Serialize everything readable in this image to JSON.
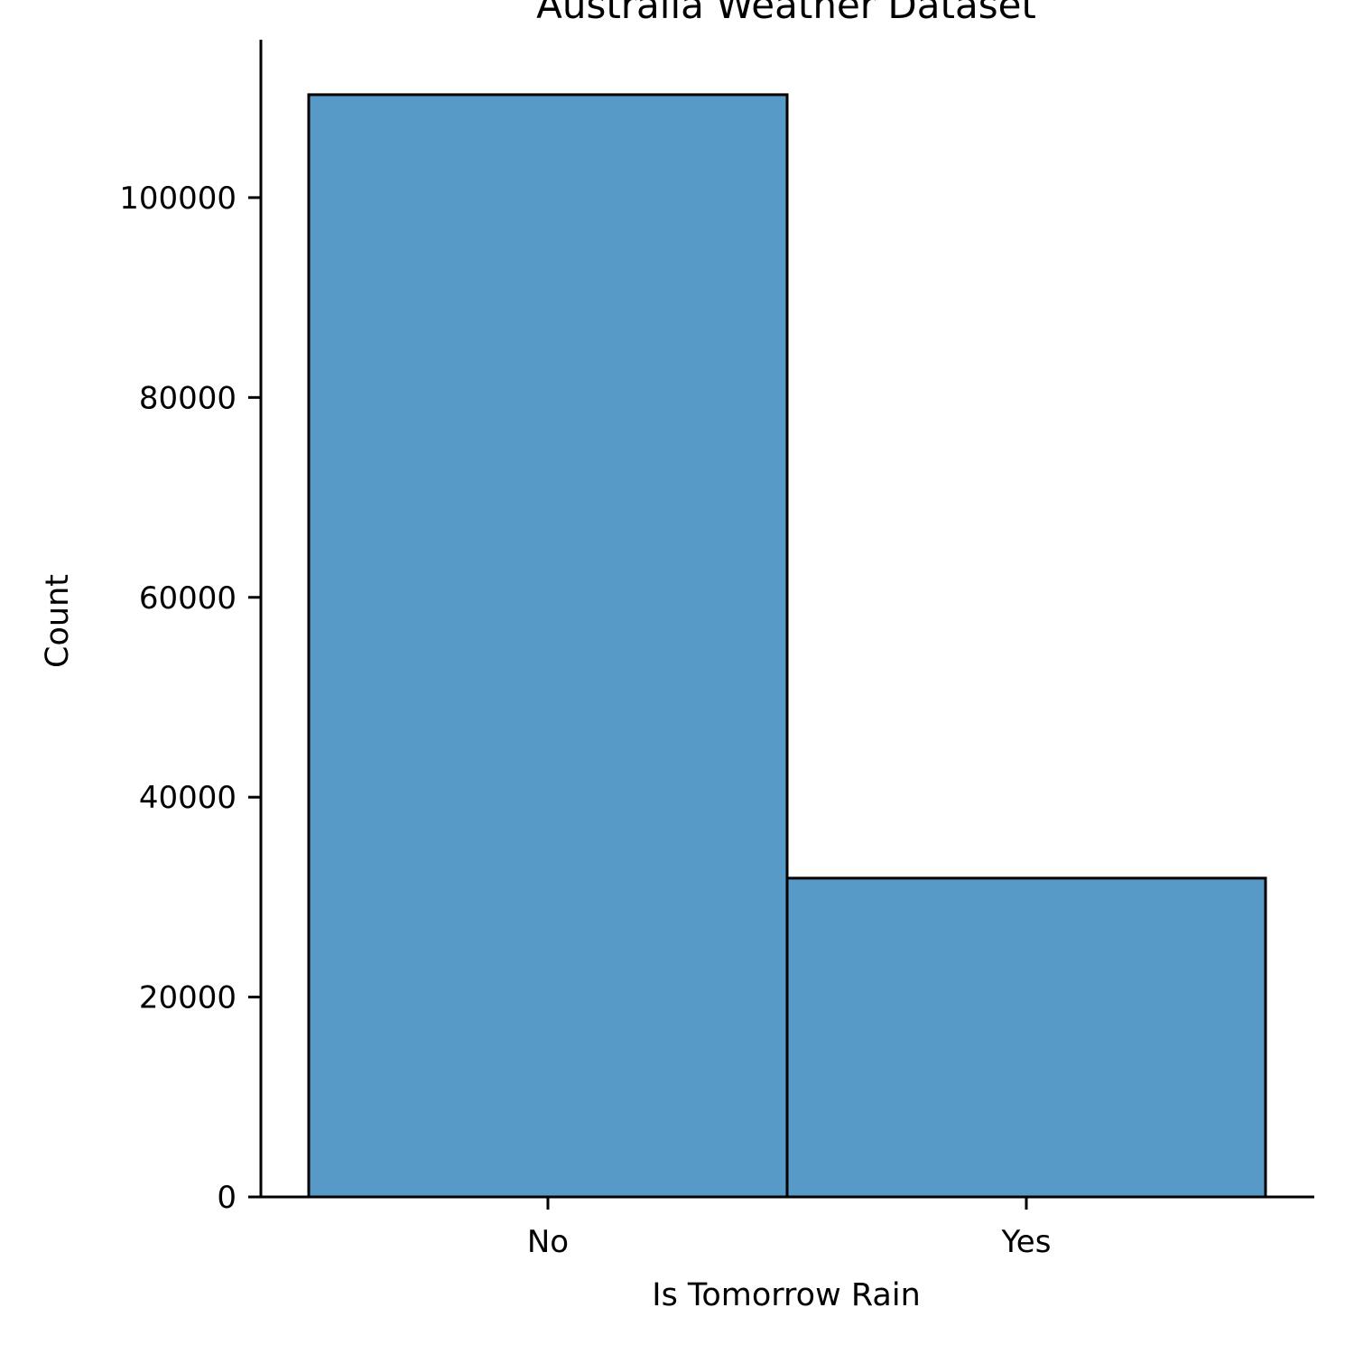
{
  "colors": {
    "bar_fill": "#5799c7",
    "bar_edge": "#000000",
    "axis": "#000000",
    "background": "#ffffff"
  },
  "chart_data": {
    "type": "bar",
    "title": "Australia Weather Dataset",
    "xlabel": "Is Tomorrow Rain",
    "ylabel": "Count",
    "categories": [
      "No",
      "Yes"
    ],
    "values": [
      110300,
      31900
    ],
    "ylim": [
      0,
      115800
    ],
    "yticks": [
      0,
      20000,
      40000,
      60000,
      80000,
      100000
    ],
    "ytick_labels": [
      "0",
      "20000",
      "40000",
      "60000",
      "80000",
      "100000"
    ],
    "grid": false,
    "legend": "none"
  }
}
